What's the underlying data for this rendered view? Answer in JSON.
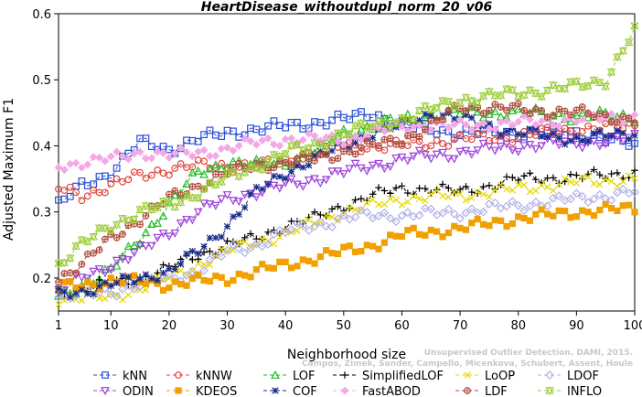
{
  "watermark": {
    "line1": "Unsupervised Outlier Detection. DAMI, 2015.",
    "line2": "Campos, Zimek, Sander, Campello, Micenkova, Schubert, Assent, Houle"
  },
  "chart_data": {
    "type": "line",
    "title": "HeartDisease_withoutdupl_norm_20_v06",
    "xlabel": "Neighborhood size",
    "ylabel": "Adjusted Maximum F1",
    "xlim": [
      1,
      100
    ],
    "ylim": [
      0.15,
      0.6
    ],
    "xticks": [
      1,
      10,
      20,
      30,
      40,
      50,
      60,
      70,
      80,
      90,
      100
    ],
    "yticks": [
      0.2,
      0.3,
      0.4,
      0.5,
      0.6
    ],
    "grid": false,
    "legend_position": "bottom",
    "series": [
      {
        "name": "kNN",
        "color": "#2a4fd6",
        "marker": "square",
        "keypoints": [
          [
            1,
            0.31
          ],
          [
            5,
            0.34
          ],
          [
            10,
            0.36
          ],
          [
            15,
            0.405
          ],
          [
            20,
            0.395
          ],
          [
            25,
            0.41
          ],
          [
            30,
            0.42
          ],
          [
            35,
            0.425
          ],
          [
            40,
            0.43
          ],
          [
            50,
            0.44
          ],
          [
            55,
            0.45
          ],
          [
            60,
            0.43
          ],
          [
            65,
            0.425
          ],
          [
            70,
            0.42
          ],
          [
            80,
            0.42
          ],
          [
            90,
            0.42
          ],
          [
            100,
            0.4
          ]
        ]
      },
      {
        "name": "kNNW",
        "color": "#e0453a",
        "marker": "circle",
        "keypoints": [
          [
            1,
            0.335
          ],
          [
            5,
            0.325
          ],
          [
            10,
            0.34
          ],
          [
            15,
            0.355
          ],
          [
            20,
            0.365
          ],
          [
            25,
            0.37
          ],
          [
            30,
            0.37
          ],
          [
            35,
            0.37
          ],
          [
            40,
            0.375
          ],
          [
            45,
            0.39
          ],
          [
            50,
            0.4
          ],
          [
            55,
            0.4
          ],
          [
            60,
            0.4
          ],
          [
            70,
            0.41
          ],
          [
            80,
            0.415
          ],
          [
            90,
            0.425
          ],
          [
            100,
            0.43
          ]
        ]
      },
      {
        "name": "LOF",
        "color": "#22bb22",
        "marker": "triangle",
        "keypoints": [
          [
            1,
            0.17
          ],
          [
            5,
            0.19
          ],
          [
            10,
            0.21
          ],
          [
            15,
            0.26
          ],
          [
            20,
            0.31
          ],
          [
            25,
            0.36
          ],
          [
            30,
            0.375
          ],
          [
            35,
            0.37
          ],
          [
            40,
            0.375
          ],
          [
            45,
            0.39
          ],
          [
            50,
            0.42
          ],
          [
            55,
            0.43
          ],
          [
            60,
            0.44
          ],
          [
            70,
            0.45
          ],
          [
            80,
            0.45
          ],
          [
            90,
            0.445
          ],
          [
            100,
            0.445
          ]
        ]
      },
      {
        "name": "SimplifiedLOF",
        "color": "#000000",
        "marker": "plus",
        "keypoints": [
          [
            1,
            0.175
          ],
          [
            5,
            0.185
          ],
          [
            10,
            0.19
          ],
          [
            15,
            0.2
          ],
          [
            20,
            0.215
          ],
          [
            25,
            0.235
          ],
          [
            30,
            0.25
          ],
          [
            35,
            0.26
          ],
          [
            40,
            0.28
          ],
          [
            45,
            0.29
          ],
          [
            50,
            0.31
          ],
          [
            55,
            0.325
          ],
          [
            60,
            0.335
          ],
          [
            65,
            0.335
          ],
          [
            70,
            0.33
          ],
          [
            75,
            0.34
          ],
          [
            80,
            0.35
          ],
          [
            90,
            0.352
          ],
          [
            100,
            0.36
          ]
        ]
      },
      {
        "name": "LoOP",
        "color": "#e6d800",
        "marker": "x",
        "keypoints": [
          [
            1,
            0.17
          ],
          [
            5,
            0.17
          ],
          [
            10,
            0.17
          ],
          [
            15,
            0.185
          ],
          [
            20,
            0.2
          ],
          [
            25,
            0.22
          ],
          [
            30,
            0.24
          ],
          [
            35,
            0.255
          ],
          [
            40,
            0.265
          ],
          [
            45,
            0.285
          ],
          [
            50,
            0.3
          ],
          [
            55,
            0.31
          ],
          [
            60,
            0.32
          ],
          [
            70,
            0.325
          ],
          [
            80,
            0.335
          ],
          [
            90,
            0.345
          ],
          [
            100,
            0.35
          ]
        ]
      },
      {
        "name": "LDOF",
        "color": "#b0b0e6",
        "marker": "diamond",
        "keypoints": [
          [
            1,
            0.17
          ],
          [
            5,
            0.175
          ],
          [
            10,
            0.18
          ],
          [
            15,
            0.19
          ],
          [
            20,
            0.2
          ],
          [
            25,
            0.21
          ],
          [
            30,
            0.24
          ],
          [
            35,
            0.25
          ],
          [
            40,
            0.27
          ],
          [
            45,
            0.28
          ],
          [
            50,
            0.29
          ],
          [
            55,
            0.295
          ],
          [
            60,
            0.295
          ],
          [
            70,
            0.3
          ],
          [
            80,
            0.31
          ],
          [
            90,
            0.32
          ],
          [
            100,
            0.33
          ]
        ]
      },
      {
        "name": "ODIN",
        "color": "#9b3fd8",
        "marker": "tri-down",
        "keypoints": [
          [
            1,
            0.18
          ],
          [
            5,
            0.2
          ],
          [
            10,
            0.22
          ],
          [
            15,
            0.24
          ],
          [
            20,
            0.27
          ],
          [
            25,
            0.3
          ],
          [
            30,
            0.32
          ],
          [
            35,
            0.33
          ],
          [
            40,
            0.34
          ],
          [
            45,
            0.35
          ],
          [
            50,
            0.36
          ],
          [
            55,
            0.37
          ],
          [
            60,
            0.38
          ],
          [
            65,
            0.385
          ],
          [
            70,
            0.39
          ],
          [
            80,
            0.4
          ],
          [
            90,
            0.405
          ],
          [
            100,
            0.41
          ]
        ]
      },
      {
        "name": "KDEOS",
        "color": "#f0a000",
        "marker": "square-filled",
        "keypoints": [
          [
            1,
            0.185
          ],
          [
            5,
            0.19
          ],
          [
            10,
            0.195
          ],
          [
            15,
            0.195
          ],
          [
            20,
            0.19
          ],
          [
            25,
            0.195
          ],
          [
            30,
            0.2
          ],
          [
            35,
            0.21
          ],
          [
            40,
            0.22
          ],
          [
            45,
            0.23
          ],
          [
            50,
            0.24
          ],
          [
            55,
            0.25
          ],
          [
            60,
            0.265
          ],
          [
            70,
            0.275
          ],
          [
            80,
            0.29
          ],
          [
            90,
            0.3
          ],
          [
            100,
            0.305
          ]
        ]
      },
      {
        "name": "COF",
        "color": "#1a2a8c",
        "marker": "star",
        "keypoints": [
          [
            1,
            0.175
          ],
          [
            5,
            0.18
          ],
          [
            10,
            0.19
          ],
          [
            15,
            0.2
          ],
          [
            20,
            0.21
          ],
          [
            25,
            0.24
          ],
          [
            30,
            0.28
          ],
          [
            35,
            0.33
          ],
          [
            40,
            0.36
          ],
          [
            45,
            0.38
          ],
          [
            50,
            0.4
          ],
          [
            55,
            0.42
          ],
          [
            60,
            0.43
          ],
          [
            65,
            0.45
          ],
          [
            70,
            0.44
          ],
          [
            80,
            0.42
          ],
          [
            90,
            0.41
          ],
          [
            100,
            0.42
          ]
        ]
      },
      {
        "name": "FastABOD",
        "color": "#f4a8e6",
        "marker": "diamond-filled",
        "keypoints": [
          [
            1,
            0.37
          ],
          [
            5,
            0.375
          ],
          [
            10,
            0.38
          ],
          [
            15,
            0.39
          ],
          [
            20,
            0.385
          ],
          [
            25,
            0.39
          ],
          [
            30,
            0.395
          ],
          [
            35,
            0.405
          ],
          [
            40,
            0.41
          ],
          [
            45,
            0.41
          ],
          [
            50,
            0.41
          ],
          [
            55,
            0.42
          ],
          [
            60,
            0.43
          ],
          [
            70,
            0.43
          ],
          [
            80,
            0.435
          ],
          [
            90,
            0.44
          ],
          [
            100,
            0.445
          ]
        ]
      },
      {
        "name": "LDF",
        "color": "#b04a3a",
        "marker": "circle-plus",
        "keypoints": [
          [
            1,
            0.2
          ],
          [
            5,
            0.22
          ],
          [
            10,
            0.26
          ],
          [
            15,
            0.29
          ],
          [
            20,
            0.32
          ],
          [
            25,
            0.34
          ],
          [
            30,
            0.36
          ],
          [
            35,
            0.37
          ],
          [
            40,
            0.375
          ],
          [
            45,
            0.38
          ],
          [
            50,
            0.39
          ],
          [
            55,
            0.4
          ],
          [
            60,
            0.41
          ],
          [
            65,
            0.43
          ],
          [
            70,
            0.46
          ],
          [
            80,
            0.455
          ],
          [
            90,
            0.45
          ],
          [
            100,
            0.44
          ]
        ]
      },
      {
        "name": "INFLO",
        "color": "#99cc33",
        "marker": "hourglass",
        "keypoints": [
          [
            1,
            0.22
          ],
          [
            5,
            0.25
          ],
          [
            10,
            0.28
          ],
          [
            15,
            0.3
          ],
          [
            20,
            0.31
          ],
          [
            25,
            0.33
          ],
          [
            30,
            0.35
          ],
          [
            35,
            0.37
          ],
          [
            40,
            0.39
          ],
          [
            45,
            0.4
          ],
          [
            50,
            0.42
          ],
          [
            55,
            0.43
          ],
          [
            60,
            0.44
          ],
          [
            70,
            0.47
          ],
          [
            80,
            0.48
          ],
          [
            90,
            0.49
          ],
          [
            95,
            0.5
          ],
          [
            100,
            0.575
          ]
        ]
      }
    ]
  }
}
